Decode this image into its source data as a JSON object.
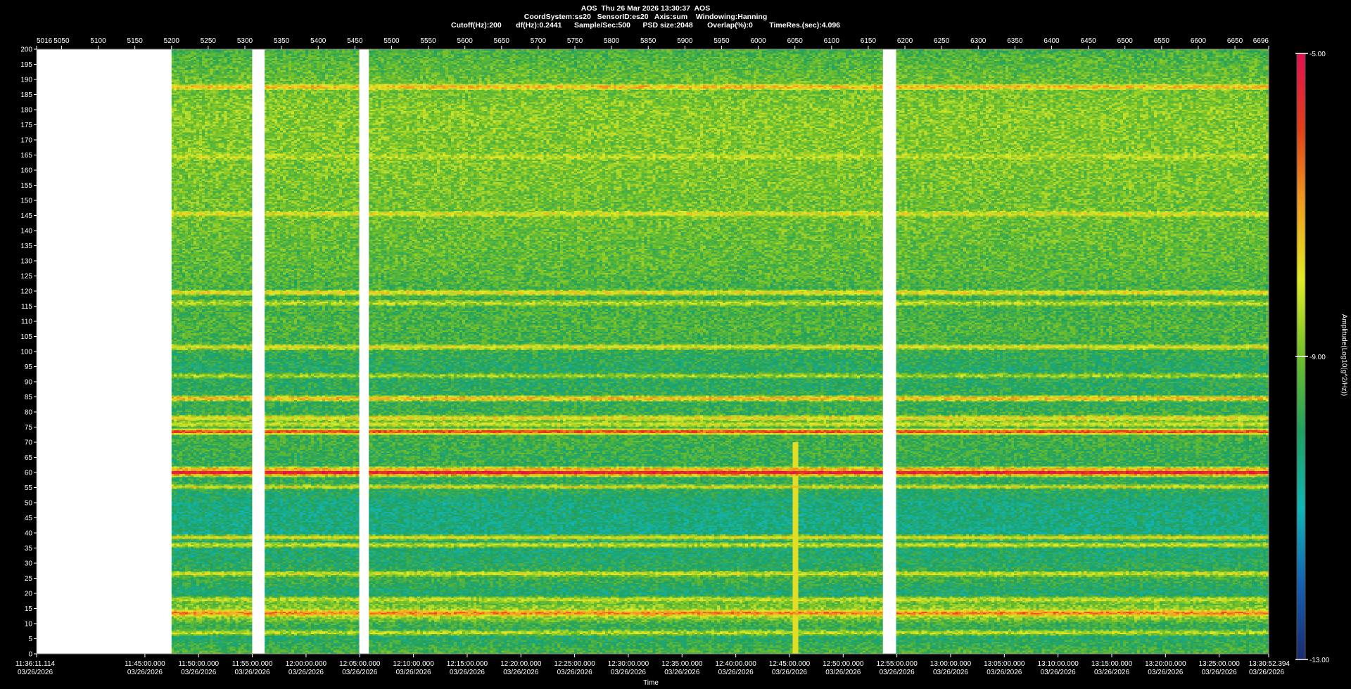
{
  "header": {
    "line1": "AOS  Thu 26 Mar 2026 13:30:37  AOS",
    "line2": "CoordSystem:ss20   SensorID:es20   Axis:sum    Windowing:Hanning",
    "line3": "Cutoff(Hz):200       df(Hz):0.2441      Sample/Sec:500      PSD size:2048       Overlap(%):0        TimeRes.(sec):4.096"
  },
  "colors": {
    "background": "#000000",
    "gap": "#ffffff",
    "colormap": [
      "#1a2a6e",
      "#1560b0",
      "#12b5b5",
      "#1fa060",
      "#6fbf2a",
      "#e0ec28",
      "#f0a020",
      "#e04018",
      "#e0104e"
    ]
  },
  "chart_data": {
    "type": "heatmap",
    "title": "",
    "xlabel": "Time",
    "ylabel": "",
    "colorbar_label": "Amplitude(Log10(g^2/Hz))",
    "colorbar_range": [
      -13.0,
      -5.0
    ],
    "colorbar_ticks": [
      "-5.00",
      "-9.00",
      "-13.00"
    ],
    "top_axis": {
      "range": [
        5016,
        6696
      ],
      "ticks": [
        "5016",
        "5050",
        "5100",
        "5150",
        "5200",
        "5250",
        "5300",
        "5350",
        "5400",
        "5450",
        "5500",
        "5550",
        "5600",
        "5650",
        "5700",
        "5750",
        "5800",
        "5850",
        "5900",
        "5950",
        "6000",
        "6050",
        "6100",
        "6150",
        "6200",
        "6250",
        "6300",
        "6350",
        "6400",
        "6450",
        "6500",
        "6550",
        "6600",
        "6650",
        "6696"
      ]
    },
    "y_axis": {
      "range": [
        0,
        200
      ],
      "ticks": [
        "0",
        "5",
        "10",
        "15",
        "20",
        "25",
        "30",
        "35",
        "40",
        "45",
        "50",
        "55",
        "60",
        "65",
        "70",
        "75",
        "80",
        "85",
        "90",
        "95",
        "100",
        "105",
        "110",
        "115",
        "120",
        "125",
        "130",
        "135",
        "140",
        "145",
        "150",
        "155",
        "160",
        "165",
        "170",
        "175",
        "180",
        "185",
        "190",
        "195",
        "200"
      ]
    },
    "x_axis": {
      "ticks": [
        {
          "v": 5016,
          "t1": "11:36:11.114",
          "t2": "03/26/2026"
        },
        {
          "v": 5163.68,
          "t1": "11:45:00.000",
          "t2": "03/26/2026"
        },
        {
          "v": 5236.92,
          "t1": "11:50:00.000",
          "t2": "03/26/2026"
        },
        {
          "v": 5310.16,
          "t1": "11:55:00.000",
          "t2": "03/26/2026"
        },
        {
          "v": 5383.4,
          "t1": "12:00:00.000",
          "t2": "03/26/2026"
        },
        {
          "v": 5456.65,
          "t1": "12:05:00.000",
          "t2": "03/26/2026"
        },
        {
          "v": 5529.89,
          "t1": "12:10:00.000",
          "t2": "03/26/2026"
        },
        {
          "v": 5603.13,
          "t1": "12:15:00.000",
          "t2": "03/26/2026"
        },
        {
          "v": 5676.37,
          "t1": "12:20:00.000",
          "t2": "03/26/2026"
        },
        {
          "v": 5749.61,
          "t1": "12:25:00.000",
          "t2": "03/26/2026"
        },
        {
          "v": 5822.85,
          "t1": "12:30:00.000",
          "t2": "03/26/2026"
        },
        {
          "v": 5896.09,
          "t1": "12:35:00.000",
          "t2": "03/26/2026"
        },
        {
          "v": 5969.34,
          "t1": "12:40:00.000",
          "t2": "03/26/2026"
        },
        {
          "v": 6042.58,
          "t1": "12:45:00.000",
          "t2": "03/26/2026"
        },
        {
          "v": 6115.82,
          "t1": "12:50:00.000",
          "t2": "03/26/2026"
        },
        {
          "v": 6189.06,
          "t1": "12:55:00.000",
          "t2": "03/26/2026"
        },
        {
          "v": 6262.3,
          "t1": "13:00:00.000",
          "t2": "03/26/2026"
        },
        {
          "v": 6335.54,
          "t1": "13:05:00.000",
          "t2": "03/26/2026"
        },
        {
          "v": 6408.79,
          "t1": "13:10:00.000",
          "t2": "03/26/2026"
        },
        {
          "v": 6482.03,
          "t1": "13:15:00.000",
          "t2": "03/26/2026"
        },
        {
          "v": 6555.27,
          "t1": "13:20:00.000",
          "t2": "03/26/2026"
        },
        {
          "v": 6628.51,
          "t1": "13:25:00.000",
          "t2": "03/26/2026"
        },
        {
          "v": 6696,
          "t1": "13:30:52.394",
          "t2": "03/26/2026"
        }
      ]
    },
    "data_gaps": [
      [
        5016,
        5200
      ],
      [
        5310,
        5327
      ],
      [
        5456,
        5469
      ],
      [
        6170,
        6188
      ]
    ],
    "base_profile": [
      {
        "hz": 0,
        "level": -9.4
      },
      {
        "hz": 5,
        "level": -10.0
      },
      {
        "hz": 10,
        "level": -9.6
      },
      {
        "hz": 13,
        "level": -8.2
      },
      {
        "hz": 17,
        "level": -9.2
      },
      {
        "hz": 20,
        "level": -10.2
      },
      {
        "hz": 25,
        "level": -9.6
      },
      {
        "hz": 30,
        "level": -10.0
      },
      {
        "hz": 40,
        "level": -10.4
      },
      {
        "hz": 50,
        "level": -10.3
      },
      {
        "hz": 55,
        "level": -9.8
      },
      {
        "hz": 65,
        "level": -9.7
      },
      {
        "hz": 75,
        "level": -9.5
      },
      {
        "hz": 85,
        "level": -9.8
      },
      {
        "hz": 95,
        "level": -10.0
      },
      {
        "hz": 100,
        "level": -9.7
      },
      {
        "hz": 108,
        "level": -9.4
      },
      {
        "hz": 118,
        "level": -9.6
      },
      {
        "hz": 125,
        "level": -9.3
      },
      {
        "hz": 140,
        "level": -9.1
      },
      {
        "hz": 160,
        "level": -8.9
      },
      {
        "hz": 180,
        "level": -8.8
      },
      {
        "hz": 195,
        "level": -9.3
      },
      {
        "hz": 200,
        "level": -9.5
      }
    ],
    "tonal_lines": [
      {
        "hz": 60.0,
        "level": -5.5
      },
      {
        "hz": 59.2,
        "level": -7.0
      },
      {
        "hz": 61.0,
        "level": -7.2
      },
      {
        "hz": 73.5,
        "level": -6.2
      },
      {
        "hz": 55.3,
        "level": -7.8
      },
      {
        "hz": 84.5,
        "level": -7.4
      },
      {
        "hz": 78.0,
        "level": -7.8
      },
      {
        "hz": 76.0,
        "level": -8.2
      },
      {
        "hz": 13.5,
        "level": -6.8
      },
      {
        "hz": 38.5,
        "level": -8.0
      },
      {
        "hz": 36.0,
        "level": -8.3
      },
      {
        "hz": 26.5,
        "level": -8.2
      },
      {
        "hz": 119.5,
        "level": -7.9
      },
      {
        "hz": 101.5,
        "level": -8.0
      },
      {
        "hz": 145.5,
        "level": -8.0
      },
      {
        "hz": 187.5,
        "level": -7.4
      },
      {
        "hz": 164.5,
        "level": -8.3
      },
      {
        "hz": 7.0,
        "level": -8.4
      },
      {
        "hz": 18.0,
        "level": -8.3
      },
      {
        "hz": 116.0,
        "level": -8.4
      },
      {
        "hz": 92.0,
        "level": -8.6
      }
    ],
    "transient": {
      "x": 6050,
      "hz_range": [
        0,
        70
      ],
      "level": -7.8
    }
  }
}
